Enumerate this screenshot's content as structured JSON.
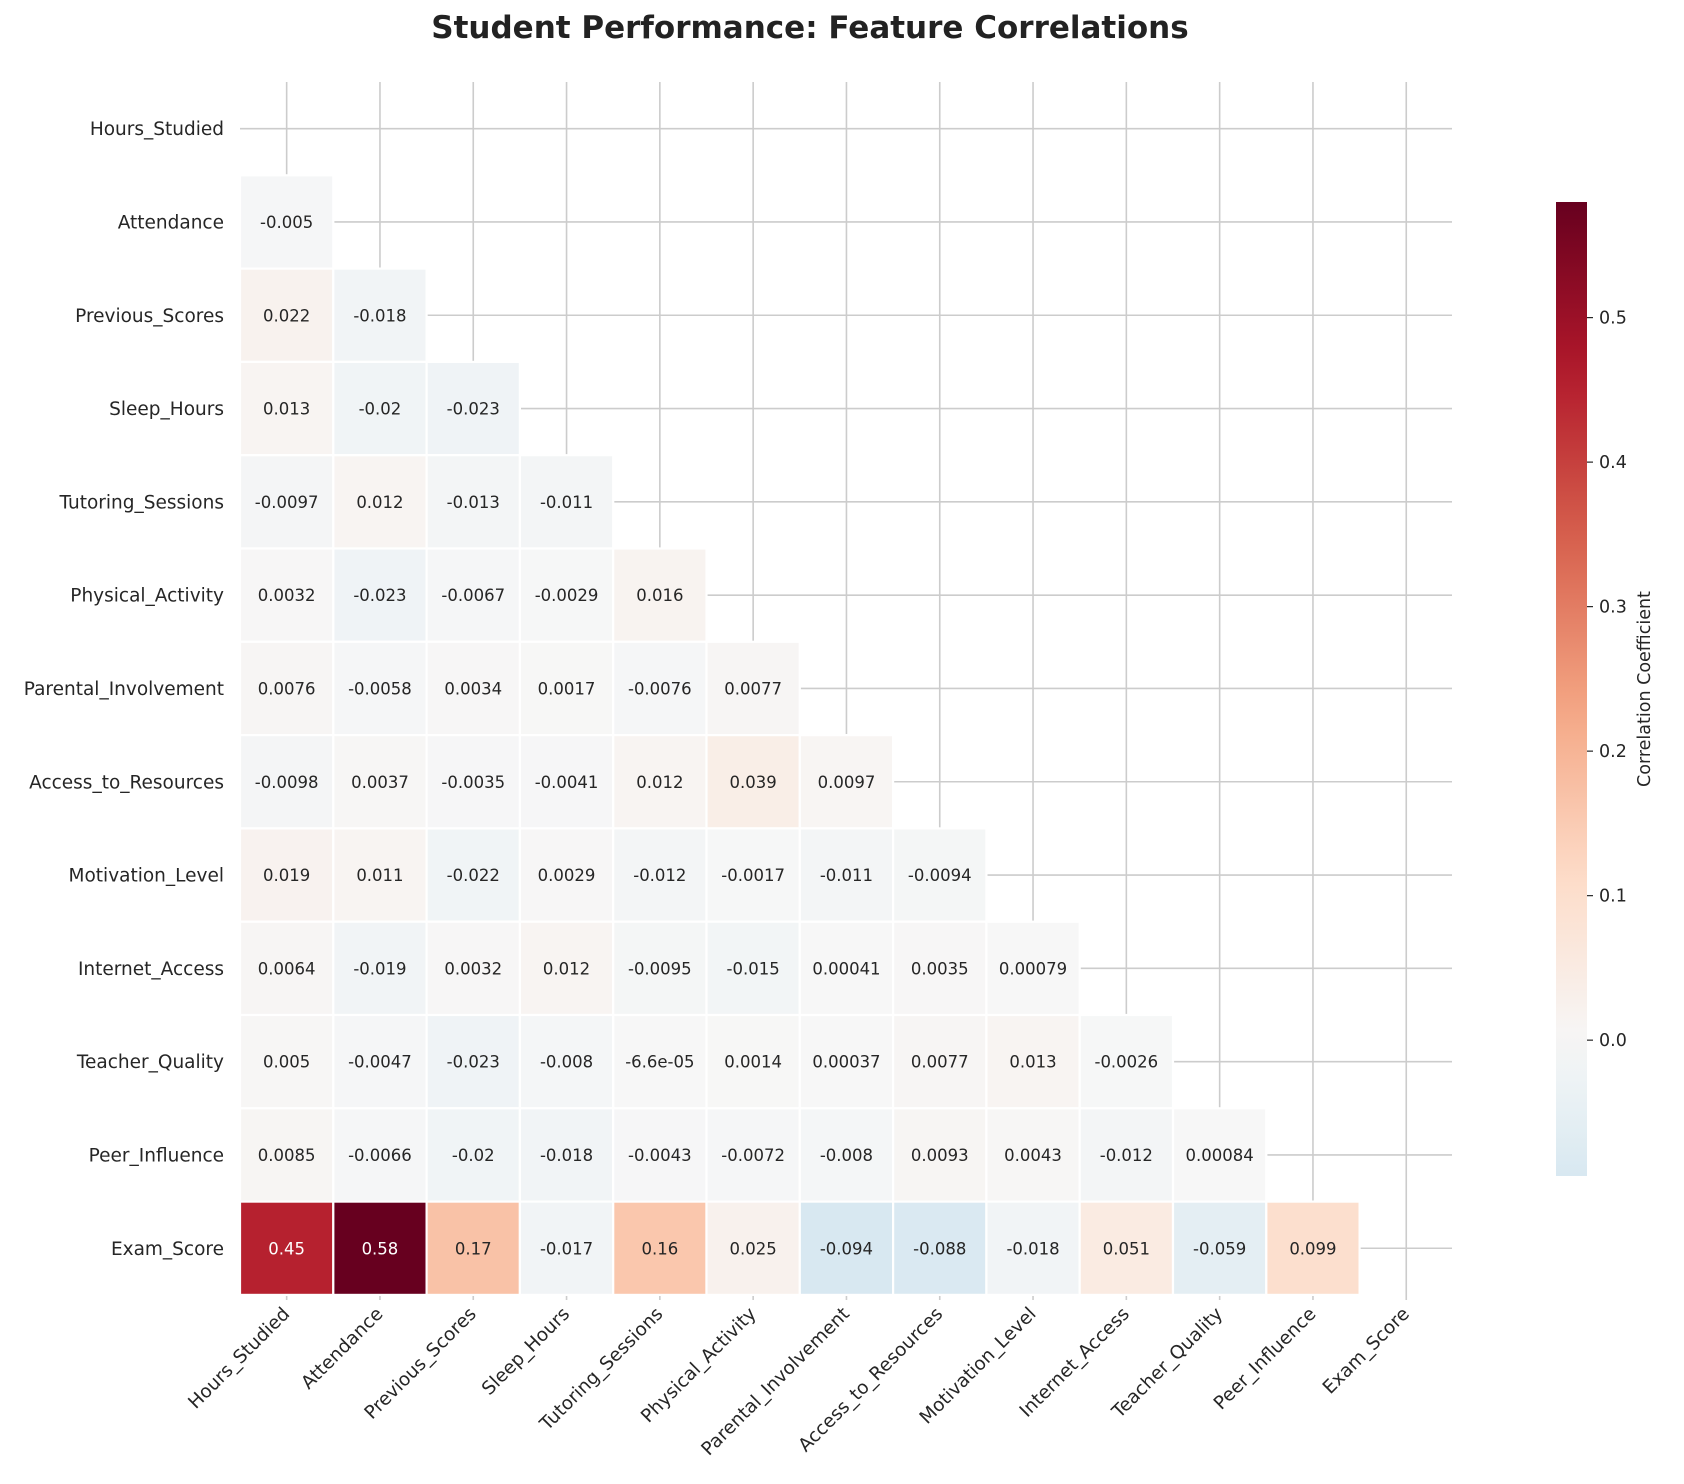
{
  "chart_data": {
    "type": "heatmap",
    "title": "Student Performance: Feature Correlations",
    "variables": [
      "Hours_Studied",
      "Attendance",
      "Previous_Scores",
      "Sleep_Hours",
      "Tutoring_Sessions",
      "Physical_Activity",
      "Parental_Involvement",
      "Access_to_Resources",
      "Motivation_Level",
      "Internet_Access",
      "Teacher_Quality",
      "Peer_Influence",
      "Exam_Score"
    ],
    "mask": "upper-triangle-including-diagonal",
    "lower_triangle": [
      [],
      [
        -0.005
      ],
      [
        0.022,
        -0.018
      ],
      [
        0.013,
        -0.02,
        -0.023
      ],
      [
        -0.0097,
        0.012,
        -0.013,
        -0.011
      ],
      [
        0.0032,
        -0.023,
        -0.0067,
        -0.0029,
        0.016
      ],
      [
        0.0076,
        -0.0058,
        0.0034,
        0.0017,
        -0.0076,
        0.0077
      ],
      [
        -0.0098,
        0.0037,
        -0.0035,
        -0.0041,
        0.012,
        0.039,
        0.0097
      ],
      [
        0.019,
        0.011,
        -0.022,
        0.0029,
        -0.012,
        -0.0017,
        -0.011,
        -0.0094
      ],
      [
        0.0064,
        -0.019,
        0.0032,
        0.012,
        -0.0095,
        -0.015,
        0.00041,
        0.0035,
        0.00079
      ],
      [
        0.005,
        -0.0047,
        -0.023,
        -0.008,
        -6.6e-05,
        0.0014,
        0.00037,
        0.0077,
        0.013,
        -0.0026
      ],
      [
        0.0085,
        -0.0066,
        -0.02,
        -0.018,
        -0.0043,
        -0.0072,
        -0.008,
        0.0093,
        0.0043,
        -0.012,
        0.00084
      ],
      [
        0.45,
        0.58,
        0.17,
        -0.017,
        0.16,
        0.025,
        -0.094,
        -0.088,
        -0.018,
        0.051,
        -0.059,
        0.099
      ]
    ],
    "cell_labels": [
      [],
      [
        "-0.005"
      ],
      [
        "0.022",
        "-0.018"
      ],
      [
        "0.013",
        "-0.02",
        "-0.023"
      ],
      [
        "-0.0097",
        "0.012",
        "-0.013",
        "-0.011"
      ],
      [
        "0.0032",
        "-0.023",
        "-0.0067",
        "-0.0029",
        "0.016"
      ],
      [
        "0.0076",
        "-0.0058",
        "0.0034",
        "0.0017",
        "-0.0076",
        "0.0077"
      ],
      [
        "-0.0098",
        "0.0037",
        "-0.0035",
        "-0.0041",
        "0.012",
        "0.039",
        "0.0097"
      ],
      [
        "0.019",
        "0.011",
        "-0.022",
        "0.0029",
        "-0.012",
        "-0.0017",
        "-0.011",
        "-0.0094"
      ],
      [
        "0.0064",
        "-0.019",
        "0.0032",
        "0.012",
        "-0.0095",
        "-0.015",
        "0.00041",
        "0.0035",
        "0.00079"
      ],
      [
        "0.005",
        "-0.0047",
        "-0.023",
        "-0.008",
        "-6.6e-05",
        "0.0014",
        "0.00037",
        "0.0077",
        "0.013",
        "-0.0026"
      ],
      [
        "0.0085",
        "-0.0066",
        "-0.02",
        "-0.018",
        "-0.0043",
        "-0.0072",
        "-0.008",
        "0.0093",
        "0.0043",
        "-0.012",
        "0.00084"
      ],
      [
        "0.45",
        "0.58",
        "0.17",
        "-0.017",
        "0.16",
        "0.025",
        "-0.094",
        "-0.088",
        "-0.018",
        "0.051",
        "-0.059",
        "0.099"
      ]
    ],
    "colormap": "RdBu_r",
    "center": 0,
    "color_range": [
      -0.094,
      0.58
    ],
    "colorbar": {
      "label": "Correlation Coefficient",
      "ticks": [
        0.0,
        0.1,
        0.2,
        0.3,
        0.4,
        0.5
      ],
      "tick_labels": [
        "0.0",
        "0.1",
        "0.2",
        "0.3",
        "0.4",
        "0.5"
      ]
    },
    "grid": true,
    "colors": {
      "cell_border": "#ffffff",
      "grid": "#cccccc",
      "text_dark": "#262626",
      "text_light": "#ffffff"
    }
  }
}
